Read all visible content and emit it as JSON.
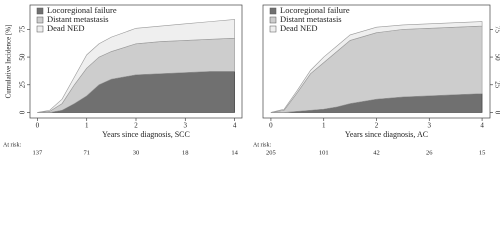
{
  "chart_data": [
    {
      "type": "stacked-area",
      "y_label": "Cumulative Incidence [%]",
      "x_label": "Years since diagnosis, SCC",
      "x": [
        0,
        0.25,
        0.5,
        0.75,
        1,
        1.25,
        1.5,
        2,
        2.5,
        3,
        3.5,
        4
      ],
      "series": [
        {
          "name": "Locoregional failure",
          "color": "#707070",
          "values": [
            0,
            0,
            2,
            8,
            15,
            25,
            30,
            34,
            35,
            36,
            37,
            37
          ]
        },
        {
          "name": "Distant metastasis",
          "color": "#cdcdcd",
          "values": [
            0,
            1,
            6,
            17,
            25,
            25,
            25,
            28,
            29,
            29,
            29,
            30
          ]
        },
        {
          "name": "Dead NED",
          "color": "#efefef",
          "values": [
            0,
            1,
            4,
            7,
            12,
            12,
            13,
            14,
            14,
            15,
            16,
            17
          ]
        }
      ],
      "xlim": [
        -0.15,
        4.15
      ],
      "ylim": [
        -5,
        97
      ],
      "xticks": [
        0,
        1,
        2,
        3,
        4
      ],
      "yticks": [
        0,
        25,
        50,
        75
      ],
      "y_axis_side": "left",
      "at_risk_label": "At risk:",
      "at_risk": [
        137,
        71,
        30,
        18,
        14
      ]
    },
    {
      "type": "stacked-area",
      "x_label": "Years since diagnosis, AC",
      "x": [
        0,
        0.25,
        0.5,
        0.75,
        1,
        1.25,
        1.5,
        2,
        2.5,
        3,
        3.5,
        4
      ],
      "series": [
        {
          "name": "Locoregional failure",
          "color": "#707070",
          "values": [
            0,
            0,
            1,
            2,
            3,
            5,
            8,
            12,
            14,
            15,
            16,
            17
          ]
        },
        {
          "name": "Distant metastasis",
          "color": "#cdcdcd",
          "values": [
            0,
            2,
            17,
            33,
            42,
            50,
            57,
            60,
            61,
            61,
            61,
            61
          ]
        },
        {
          "name": "Dead NED",
          "color": "#efefef",
          "values": [
            0,
            1,
            2,
            3,
            5,
            5,
            5,
            5,
            4,
            4,
            4,
            4
          ]
        }
      ],
      "xlim": [
        -0.15,
        4.15
      ],
      "ylim": [
        -5,
        97
      ],
      "xticks": [
        0,
        1,
        2,
        3,
        4
      ],
      "yticks": [
        0,
        25,
        50,
        75
      ],
      "y_axis_side": "right",
      "at_risk_label": "At risk:",
      "at_risk": [
        205,
        101,
        42,
        26,
        15
      ]
    }
  ]
}
